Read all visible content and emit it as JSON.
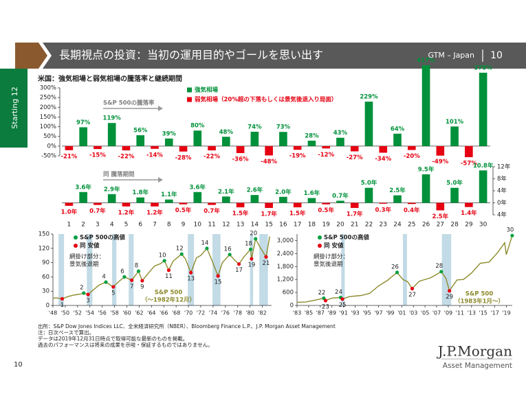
{
  "header": {
    "title": "長期視点の投資：当初の運用目的やゴールを思い出す",
    "region": "GTM – Japan",
    "page": "10"
  },
  "side_tab": "Starting 12",
  "chart_title": "米国：強気相場と弱気相場の騰落率と継続期間",
  "chart_data": [
    {
      "type": "bar",
      "annotation": "S&P 500の騰落率",
      "categories": [
        "1",
        "2",
        "3",
        "4",
        "5",
        "6",
        "7",
        "8",
        "9",
        "10",
        "11",
        "12",
        "13",
        "14",
        "15",
        "16",
        "17",
        "18",
        "19",
        "20",
        "21",
        "22",
        "23",
        "24",
        "25",
        "26",
        "27",
        "28",
        "29",
        "30"
      ],
      "series": [
        {
          "name": "強気相場",
          "color": "#00913a",
          "values": [
            null,
            97,
            null,
            119,
            null,
            56,
            null,
            39,
            null,
            80,
            null,
            48,
            null,
            74,
            null,
            73,
            null,
            28,
            null,
            43,
            null,
            229,
            null,
            64,
            null,
            417,
            null,
            101,
            null,
            378
          ],
          "value_labels": [
            null,
            "97%",
            null,
            "119%",
            null,
            "56%",
            null,
            "39%",
            null,
            "80%",
            null,
            "48%",
            null,
            "74%",
            null,
            "73%",
            null,
            "28%",
            null,
            "43%",
            null,
            "229%",
            null,
            "64%",
            null,
            "417%",
            null,
            "101%",
            null,
            "378%"
          ]
        },
        {
          "name": "弱気相場（20%超の下落もしくは景気後退入り局面）",
          "color": "#e60012",
          "values": [
            -21,
            null,
            -15,
            null,
            -22,
            null,
            -14,
            null,
            -28,
            null,
            -22,
            null,
            -36,
            null,
            -48,
            null,
            -19,
            null,
            -12,
            null,
            -27,
            null,
            -34,
            null,
            -20,
            null,
            -49,
            null,
            -57,
            null
          ],
          "value_labels": [
            "-21%",
            null,
            "-15%",
            null,
            "-22%",
            null,
            "-14%",
            null,
            "-28%",
            null,
            "-22%",
            null,
            "-36%",
            null,
            "-48%",
            null,
            "-19%",
            null,
            "-12%",
            null,
            "-27%",
            null,
            "-34%",
            null,
            "-20%",
            null,
            "-49%",
            null,
            "-57%",
            null
          ]
        }
      ],
      "ylim": [
        -50,
        300
      ],
      "yticks": [
        {
          "value": -50,
          "label": "-50%"
        },
        {
          "value": 0,
          "label": "0%"
        },
        {
          "value": 50,
          "label": "50%"
        },
        {
          "value": 100,
          "label": "100%"
        },
        {
          "value": 150,
          "label": "150%"
        },
        {
          "value": 200,
          "label": "200%"
        },
        {
          "value": 250,
          "label": "250%"
        },
        {
          "value": 300,
          "label": "300%"
        }
      ]
    },
    {
      "type": "bar",
      "annotation": "同 騰落期間",
      "series": [
        {
          "color": "#00913a",
          "axis": "y2",
          "values": [
            null,
            3.6,
            null,
            2.9,
            null,
            1.8,
            null,
            1.1,
            null,
            3.6,
            null,
            2.1,
            null,
            2.6,
            null,
            2.0,
            null,
            1.6,
            null,
            0.7,
            null,
            5.0,
            null,
            2.5,
            null,
            9.5,
            null,
            5.0,
            null,
            10.8
          ],
          "value_labels": [
            null,
            "3.6年",
            null,
            "2.9年",
            null,
            "1.8年",
            null,
            "1.1年",
            null,
            "3.6年",
            null,
            "2.1年",
            null,
            "2.6年",
            null,
            "2.0年",
            null,
            "1.6年",
            null,
            "0.7年",
            null,
            "5.0年",
            null,
            "2.5年",
            null,
            "9.5年",
            null,
            "5.0年",
            null,
            "10.8年"
          ]
        },
        {
          "color": "#e60012",
          "axis": "y2",
          "values": [
            -1.0,
            null,
            -0.7,
            null,
            -1.2,
            null,
            -1.2,
            null,
            -0.5,
            null,
            -0.7,
            null,
            -1.5,
            null,
            -1.7,
            null,
            -1.5,
            null,
            -0.5,
            null,
            -1.7,
            null,
            -0.3,
            null,
            -0.4,
            null,
            -2.5,
            null,
            -1.4,
            null
          ],
          "value_labels": [
            "1.0年",
            null,
            "0.7年",
            null,
            "1.2年",
            null,
            "1.2年",
            null,
            "0.5年",
            null,
            "0.7年",
            null,
            "1.5年",
            null,
            "1.7年",
            null,
            "1.5年",
            null,
            "0.5年",
            null,
            "1.7年",
            null,
            "0.3年",
            null,
            "0.4年",
            null,
            "2.5年",
            null,
            "1.4年",
            null
          ]
        }
      ],
      "y2lim": [
        -4,
        12
      ],
      "y2ticks": [
        {
          "value": -4,
          "label": "4年"
        },
        {
          "value": 0,
          "label": "0年"
        },
        {
          "value": 4,
          "label": "4年"
        },
        {
          "value": 8,
          "label": "8年"
        },
        {
          "value": 12,
          "label": "12年"
        }
      ]
    },
    {
      "type": "line",
      "color": "#8c8a2c",
      "x": [
        1948.0,
        1948.5,
        1949.5,
        1950.5,
        1951.5,
        1952.5,
        1953.0,
        1953.7,
        1954.5,
        1955.5,
        1956.6,
        1957.8,
        1958.5,
        1959.6,
        1960.8,
        1961.9,
        1962.5,
        1963.5,
        1964.5,
        1965.5,
        1966.1,
        1966.8,
        1967.5,
        1968.9,
        1969.5,
        1970.4,
        1971.3,
        1972.0,
        1973.0,
        1973.8,
        1974.8,
        1975.5,
        1976.7,
        1977.5,
        1978.2,
        1979.0,
        1980.1,
        1980.25,
        1980.9,
        1981.5,
        1982.6,
        1983.2
      ],
      "values": [
        15,
        16,
        14,
        19,
        22,
        24,
        26,
        23,
        32,
        43,
        49,
        39,
        48,
        60,
        53,
        72,
        52,
        68,
        83,
        88,
        94,
        74,
        93,
        108,
        98,
        69,
        100,
        105,
        120,
        95,
        62,
        90,
        107,
        95,
        87,
        102,
        118,
        98,
        140,
        125,
        102,
        145
      ],
      "series_label": [
        "S&P 500",
        "（～1982年12月）"
      ],
      "marker_series": [
        {
          "name": "S&P 500の高値",
          "color": "#00a040",
          "labels": [
            "2",
            "4",
            "6",
            "8",
            "10",
            "12",
            "14",
            "16",
            "18",
            "20"
          ],
          "x": [
            1953.0,
            1956.6,
            1959.6,
            1961.9,
            1966.1,
            1968.9,
            1973.0,
            1976.7,
            1980.1,
            1980.9
          ],
          "values": [
            26,
            49,
            60,
            72,
            94,
            108,
            120,
            107,
            118,
            140
          ]
        },
        {
          "name": "同 安値",
          "color": "#e60012",
          "labels": [
            "1",
            "3",
            "5",
            "7",
            "9",
            "11",
            "13",
            "15",
            "17",
            "19",
            "21"
          ],
          "x": [
            1949.5,
            1953.7,
            1957.8,
            1960.8,
            1962.5,
            1966.8,
            1970.4,
            1974.8,
            1978.2,
            1980.25,
            1982.6
          ],
          "values": [
            14,
            23,
            39,
            53,
            52,
            74,
            69,
            62,
            87,
            98,
            102
          ]
        }
      ],
      "recession_label": [
        "網掛け部分：",
        "景気後退期"
      ],
      "recessions": [
        [
          1948.9,
          1949.8
        ],
        [
          1953.5,
          1954.4
        ],
        [
          1957.6,
          1958.3
        ],
        [
          1960.3,
          1961.1
        ],
        [
          1969.9,
          1970.9
        ],
        [
          1973.9,
          1975.2
        ],
        [
          1980.0,
          1980.5
        ],
        [
          1981.5,
          1982.9
        ]
      ],
      "recession_color": "#c2dbe6",
      "xlim": [
        1948,
        1983.5
      ],
      "xticks": [
        {
          "value": 1948,
          "label": "'48"
        },
        {
          "value": 1950,
          "label": "'50"
        },
        {
          "value": 1952,
          "label": "'52"
        },
        {
          "value": 1954,
          "label": "'54"
        },
        {
          "value": 1956,
          "label": "'56"
        },
        {
          "value": 1958,
          "label": "'58"
        },
        {
          "value": 1960,
          "label": "'60"
        },
        {
          "value": 1962,
          "label": "'62"
        },
        {
          "value": 1964,
          "label": "'64"
        },
        {
          "value": 1966,
          "label": "'66"
        },
        {
          "value": 1968,
          "label": "'68"
        },
        {
          "value": 1970,
          "label": "'70"
        },
        {
          "value": 1972,
          "label": "'72"
        },
        {
          "value": 1974,
          "label": "'74"
        },
        {
          "value": 1976,
          "label": "'76"
        },
        {
          "value": 1978,
          "label": "'78"
        },
        {
          "value": 1980,
          "label": "'80"
        },
        {
          "value": 1982,
          "label": "'82"
        }
      ],
      "ylim": [
        0,
        150
      ],
      "yticks": [
        0,
        30,
        60,
        90,
        120,
        150
      ]
    },
    {
      "type": "line",
      "color": "#8c8a2c",
      "x": [
        1983.0,
        1984.5,
        1986.0,
        1987.6,
        1987.9,
        1989.0,
        1990.5,
        1990.8,
        1992.0,
        1994.0,
        1995.5,
        1997.0,
        1998.5,
        2000.2,
        2001.2,
        2002.0,
        2002.8,
        2004.0,
        2006.0,
        2007.8,
        2008.6,
        2009.2,
        2010.5,
        2011.6,
        2013.0,
        2014.5,
        2016.0,
        2017.5,
        2018.7,
        2018.98,
        2019.99
      ],
      "values": [
        145,
        160,
        240,
        336,
        224,
        340,
        369,
        295,
        410,
        460,
        560,
        900,
        1150,
        1527,
        1200,
        1100,
        777,
        1120,
        1280,
        1565,
        1250,
        677,
        1180,
        1200,
        1500,
        1950,
        2000,
        2450,
        2900,
        2350,
        3231
      ],
      "series_label": [
        "S&P 500",
        "（1983年1月～）"
      ],
      "marker_series": [
        {
          "name": "S&P 500の高値",
          "color": "#00a040",
          "labels": [
            "22",
            "24",
            "26",
            "28",
            "30"
          ],
          "x": [
            1987.6,
            1990.5,
            2000.2,
            2007.8,
            2019.99
          ],
          "values": [
            336,
            369,
            1527,
            1565,
            3231
          ]
        },
        {
          "name": "同 安値",
          "color": "#e60012",
          "labels": [
            "23",
            "25",
            "27",
            "29"
          ],
          "x": [
            1987.9,
            1990.8,
            2002.8,
            2009.2
          ],
          "values": [
            224,
            295,
            777,
            677
          ]
        }
      ],
      "recession_label": [
        "網掛け部分：",
        "景気後退期"
      ],
      "recessions": [
        [
          1990.6,
          1991.2
        ],
        [
          2001.2,
          2001.9
        ],
        [
          2007.9,
          2009.5
        ]
      ],
      "recession_color": "#c2dbe6",
      "xlim": [
        1983,
        2020
      ],
      "xticks": [
        {
          "value": 1983,
          "label": "'83"
        },
        {
          "value": 1985,
          "label": "'85"
        },
        {
          "value": 1987,
          "label": "'87"
        },
        {
          "value": 1989,
          "label": "'89"
        },
        {
          "value": 1991,
          "label": "'91"
        },
        {
          "value": 1993,
          "label": "'93"
        },
        {
          "value": 1995,
          "label": "'95"
        },
        {
          "value": 1997,
          "label": "'97"
        },
        {
          "value": 1999,
          "label": "'99"
        },
        {
          "value": 2001,
          "label": "'01"
        },
        {
          "value": 2003,
          "label": "'03"
        },
        {
          "value": 2005,
          "label": "'05"
        },
        {
          "value": 2007,
          "label": "'07"
        },
        {
          "value": 2009,
          "label": "'09"
        },
        {
          "value": 2011,
          "label": "'11"
        },
        {
          "value": 2013,
          "label": "'13"
        },
        {
          "value": 2015,
          "label": "'15"
        },
        {
          "value": 2017,
          "label": "'17"
        },
        {
          "value": 2019,
          "label": "'19"
        }
      ],
      "ylim": [
        0,
        3300
      ],
      "yticks": [
        0,
        600,
        {
          "value": 1200,
          "label": "1,200"
        },
        {
          "value": 1800,
          "label": "1,800"
        },
        {
          "value": 2400,
          "label": "2,400"
        },
        {
          "value": 3000,
          "label": "3,000"
        }
      ]
    }
  ],
  "footnotes": [
    "出所：S&P Dow Jones Indices LLC、全米経済研究所（NBER）、Bloomberg Finance L.P.、J.P. Morgan Asset Management",
    "注：日次ベースで算出。",
    "データは2019年12月31日時点で取得可能な最新のものを掲載。",
    "過去のパフォーマンスは将来の成果を示唆・保証するものではありません。"
  ],
  "page_number": "10",
  "logo": {
    "name": "J.P.Morgan",
    "sub": "Asset Management"
  }
}
